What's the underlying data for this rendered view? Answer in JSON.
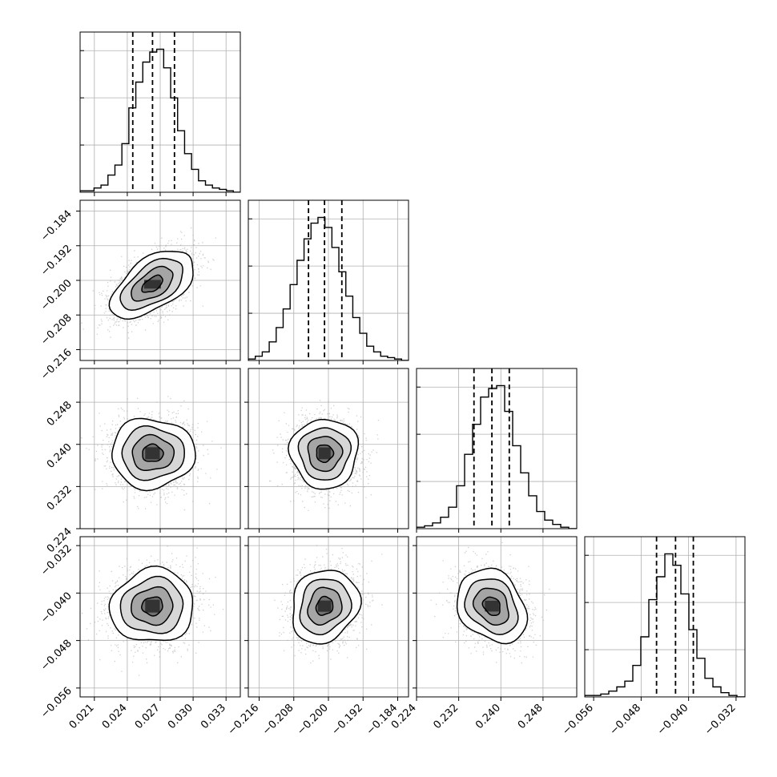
{
  "chart_data": {
    "type": "corner",
    "title": "",
    "grid": true,
    "quantile_line_style": "dashed",
    "parameters": [
      {
        "range": [
          0.0197,
          0.0343
        ],
        "ticks": [
          0.021,
          0.024,
          0.027,
          0.03,
          0.033
        ],
        "tick_labels": [
          "0.021",
          "0.024",
          "0.027",
          "0.030",
          "0.033"
        ],
        "quantiles": [
          0.0245,
          0.0263,
          0.0283
        ],
        "hist": [
          0.01,
          0.01,
          0.03,
          0.05,
          0.12,
          0.19,
          0.34,
          0.59,
          0.77,
          0.91,
          0.98,
          1.0,
          0.87,
          0.66,
          0.43,
          0.27,
          0.16,
          0.08,
          0.05,
          0.03,
          0.02,
          0.01,
          0.0
        ]
      },
      {
        "range": [
          -0.2185,
          -0.1815
        ],
        "ticks": [
          -0.216,
          -0.208,
          -0.2,
          -0.192,
          -0.184
        ],
        "tick_labels": [
          "−0.216",
          "−0.208",
          "−0.200",
          "−0.192",
          "−0.184"
        ],
        "quantiles": [
          -0.2046,
          -0.2009,
          -0.1969
        ],
        "hist": [
          0.01,
          0.03,
          0.06,
          0.13,
          0.23,
          0.36,
          0.53,
          0.7,
          0.85,
          0.96,
          1.0,
          0.93,
          0.79,
          0.62,
          0.45,
          0.3,
          0.19,
          0.1,
          0.06,
          0.03,
          0.02,
          0.01,
          0.0
        ]
      },
      {
        "range": [
          0.224,
          0.2544
        ],
        "ticks": [
          0.224,
          0.232,
          0.24,
          0.248
        ],
        "tick_labels": [
          "0.224",
          "0.232",
          "0.240",
          "0.248"
        ],
        "quantiles": [
          0.2349,
          0.2383,
          0.2416
        ],
        "hist": [
          0.01,
          0.02,
          0.04,
          0.08,
          0.15,
          0.3,
          0.52,
          0.73,
          0.92,
          0.98,
          1.0,
          0.82,
          0.58,
          0.39,
          0.23,
          0.12,
          0.06,
          0.03,
          0.01,
          0.0
        ]
      },
      {
        "range": [
          -0.0575,
          -0.0305
        ],
        "ticks": [
          -0.056,
          -0.048,
          -0.04,
          -0.032
        ],
        "tick_labels": [
          "−0.056",
          "−0.048",
          "−0.040",
          "−0.032"
        ],
        "quantiles": [
          -0.0454,
          -0.0422,
          -0.0392
        ],
        "hist": [
          0.01,
          0.01,
          0.02,
          0.04,
          0.07,
          0.11,
          0.22,
          0.42,
          0.68,
          0.84,
          1.0,
          0.92,
          0.72,
          0.47,
          0.27,
          0.13,
          0.07,
          0.03,
          0.01,
          0.0
        ]
      }
    ],
    "pairs": [
      {
        "row": 1,
        "col": 0,
        "center": [
          0.0263,
          -0.2009
        ],
        "sigma": [
          0.0019,
          0.0039
        ],
        "rho": 0.55
      },
      {
        "row": 2,
        "col": 0,
        "center": [
          0.0263,
          0.2383
        ],
        "sigma": [
          0.0019,
          0.0033
        ],
        "rho": 0.0
      },
      {
        "row": 2,
        "col": 1,
        "center": [
          -0.2009,
          0.2383
        ],
        "sigma": [
          0.0039,
          0.0033
        ],
        "rho": 0.0
      },
      {
        "row": 3,
        "col": 0,
        "center": [
          0.0263,
          -0.0422
        ],
        "sigma": [
          0.0019,
          0.0031
        ],
        "rho": 0.05
      },
      {
        "row": 3,
        "col": 1,
        "center": [
          -0.2009,
          -0.0422
        ],
        "sigma": [
          0.0039,
          0.0031
        ],
        "rho": 0.15
      },
      {
        "row": 3,
        "col": 2,
        "center": [
          0.2383,
          -0.0422
        ],
        "sigma": [
          0.0033,
          0.0031
        ],
        "rho": -0.25
      }
    ],
    "contour_levels_sigma": [
      0.5,
      1.0,
      1.5,
      2.0
    ]
  }
}
